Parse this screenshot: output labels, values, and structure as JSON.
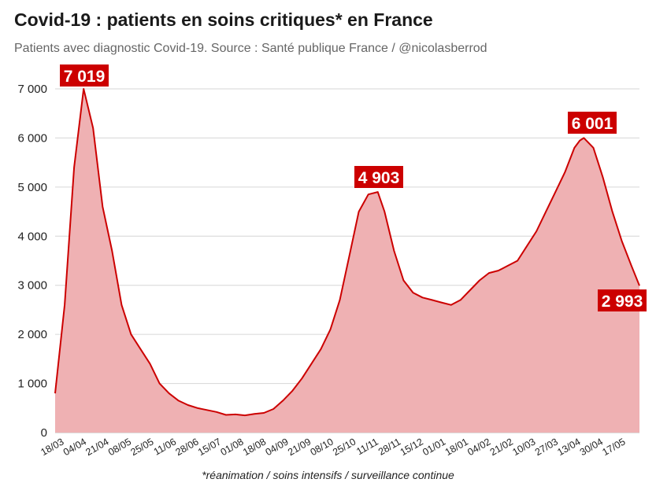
{
  "title": "Covid-19 : patients en soins critiques* en France",
  "subtitle": "Patients avec diagnostic Covid-19. Source : Santé publique France / @nicolasberrod",
  "footnote": "*réanimation / soins intensifs / surveillance continue",
  "colors": {
    "line": "#cc0000",
    "area": "#efb1b3",
    "label_bg": "#cc0000",
    "label_text": "#ffffff",
    "grid": "#d6d6d6"
  },
  "chart_data": {
    "type": "area",
    "ylim": [
      0,
      7000
    ],
    "yticks": [
      0,
      1000,
      2000,
      3000,
      4000,
      5000,
      6000,
      7000
    ],
    "ytick_labels": [
      "0",
      "1 000",
      "2 000",
      "3 000",
      "4 000",
      "5 000",
      "6 000",
      "7 000"
    ],
    "xtick_labels": [
      "18/03",
      "04/04",
      "21/04",
      "08/05",
      "25/05",
      "11/06",
      "28/06",
      "15/07",
      "01/08",
      "18/08",
      "04/09",
      "21/09",
      "08/10",
      "25/10",
      "11/11",
      "28/11",
      "15/12",
      "01/01",
      "18/01",
      "04/02",
      "21/02",
      "10/03",
      "27/03",
      "13/04",
      "30/04",
      "17/05"
    ],
    "grid": true,
    "x": [
      "2020-03-18",
      "2020-03-25",
      "2020-04-01",
      "2020-04-08",
      "2020-04-15",
      "2020-04-22",
      "2020-04-29",
      "2020-05-06",
      "2020-05-13",
      "2020-05-20",
      "2020-05-27",
      "2020-06-03",
      "2020-06-10",
      "2020-06-17",
      "2020-06-24",
      "2020-07-01",
      "2020-07-08",
      "2020-07-15",
      "2020-07-22",
      "2020-07-29",
      "2020-08-05",
      "2020-08-12",
      "2020-08-19",
      "2020-08-26",
      "2020-09-02",
      "2020-09-09",
      "2020-09-16",
      "2020-09-23",
      "2020-09-30",
      "2020-10-07",
      "2020-10-14",
      "2020-10-21",
      "2020-10-28",
      "2020-11-04",
      "2020-11-11",
      "2020-11-16",
      "2020-11-23",
      "2020-11-30",
      "2020-12-07",
      "2020-12-14",
      "2020-12-21",
      "2020-12-28",
      "2021-01-04",
      "2021-01-11",
      "2021-01-18",
      "2021-01-25",
      "2021-02-01",
      "2021-02-08",
      "2021-02-15",
      "2021-02-22",
      "2021-03-01",
      "2021-03-08",
      "2021-03-15",
      "2021-03-22",
      "2021-03-29",
      "2021-04-05",
      "2021-04-09",
      "2021-04-12",
      "2021-04-19",
      "2021-04-26",
      "2021-05-03",
      "2021-05-10",
      "2021-05-17",
      "2021-05-23"
    ],
    "values": [
      800,
      2600,
      5400,
      7000,
      6200,
      4600,
      3700,
      2600,
      2000,
      1700,
      1400,
      1000,
      800,
      650,
      560,
      500,
      460,
      420,
      360,
      370,
      350,
      380,
      400,
      480,
      650,
      850,
      1100,
      1400,
      1700,
      2100,
      2700,
      3600,
      4500,
      4850,
      4900,
      4500,
      3700,
      3100,
      2850,
      2750,
      2700,
      2650,
      2600,
      2700,
      2900,
      3100,
      3250,
      3300,
      3400,
      3500,
      3800,
      4100,
      4500,
      4900,
      5300,
      5800,
      5950,
      6000,
      5800,
      5200,
      4500,
      3900,
      3400,
      2993
    ],
    "annotations": [
      {
        "text": "7 019",
        "x": "2020-04-08",
        "y": 7019
      },
      {
        "text": "4 903",
        "x": "2020-11-11",
        "y": 4903
      },
      {
        "text": "6 001",
        "x": "2021-04-12",
        "y": 6001
      },
      {
        "text": "2 993",
        "x": "2021-05-23",
        "y": 2993
      }
    ]
  }
}
